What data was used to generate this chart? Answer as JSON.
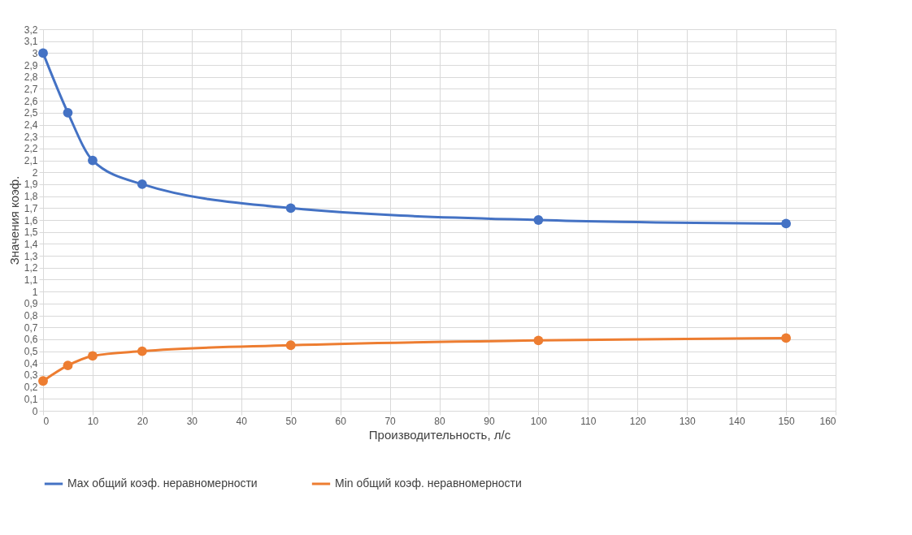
{
  "chart_data": {
    "type": "line",
    "xlabel": "Производительность, л/с",
    "ylabel": "Значения коэф.",
    "x": [
      0,
      5,
      10,
      20,
      50,
      100,
      150
    ],
    "series": [
      {
        "name": "Max общий коэф. неравномерности",
        "color": "#4472c4",
        "values": [
          3.0,
          2.5,
          2.1,
          1.9,
          1.7,
          1.6,
          1.57
        ]
      },
      {
        "name": "Min общий коэф. неравномерности",
        "color": "#ed7d31",
        "values": [
          0.25,
          0.38,
          0.46,
          0.5,
          0.55,
          0.59,
          0.61
        ]
      }
    ],
    "xlim": [
      0,
      160
    ],
    "xticks": [
      0,
      10,
      20,
      30,
      40,
      50,
      60,
      70,
      80,
      90,
      100,
      110,
      120,
      130,
      140,
      150,
      160
    ],
    "ylim": [
      0,
      3.2
    ],
    "yticks": [
      0,
      {
        "value": 0.1,
        "label": "0,1"
      },
      {
        "value": 0.2,
        "label": "0,2"
      },
      {
        "value": 0.3,
        "label": "0,3"
      },
      {
        "value": 0.4,
        "label": "0,4"
      },
      {
        "value": 0.5,
        "label": "0,5"
      },
      {
        "value": 0.6,
        "label": "0,6"
      },
      {
        "value": 0.7,
        "label": "0,7"
      },
      {
        "value": 0.8,
        "label": "0,8"
      },
      {
        "value": 0.9,
        "label": "0,9"
      },
      1,
      {
        "value": 1.1,
        "label": "1,1"
      },
      {
        "value": 1.2,
        "label": "1,2"
      },
      {
        "value": 1.3,
        "label": "1,3"
      },
      {
        "value": 1.4,
        "label": "1,4"
      },
      {
        "value": 1.5,
        "label": "1,5"
      },
      {
        "value": 1.6,
        "label": "1,6"
      },
      {
        "value": 1.7,
        "label": "1,7"
      },
      {
        "value": 1.8,
        "label": "1,8"
      },
      {
        "value": 1.9,
        "label": "1,9"
      },
      2,
      {
        "value": 2.1,
        "label": "2,1"
      },
      {
        "value": 2.2,
        "label": "2,2"
      },
      {
        "value": 2.3,
        "label": "2,3"
      },
      {
        "value": 2.4,
        "label": "2,4"
      },
      {
        "value": 2.5,
        "label": "2,5"
      },
      {
        "value": 2.6,
        "label": "2,6"
      },
      {
        "value": 2.7,
        "label": "2,7"
      },
      {
        "value": 2.8,
        "label": "2,8"
      },
      {
        "value": 2.9,
        "label": "2,9"
      },
      3,
      {
        "value": 3.1,
        "label": "3,1"
      },
      {
        "value": 3.2,
        "label": "3,2"
      }
    ],
    "grid": true,
    "legend": "bottom",
    "marker": "circle",
    "line_style": "solid"
  }
}
